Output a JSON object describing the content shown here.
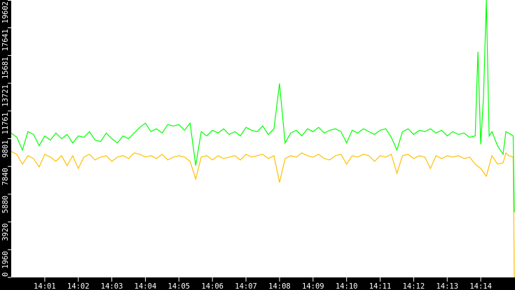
{
  "chart_data": {
    "type": "line",
    "title": "",
    "xlabel": "",
    "ylabel": "",
    "xlim": [
      "14:00:00",
      "14:15:00"
    ],
    "ylim": [
      0,
      19602
    ],
    "grid": false,
    "legend": "none",
    "background": "#000000",
    "plot_background": "#ffffff",
    "x_ticks": [
      "14:01",
      "14:02",
      "14:03",
      "14:04",
      "14:05",
      "14:06",
      "14:07",
      "14:08",
      "14:09",
      "14:10",
      "14:11",
      "14:12",
      "14:13",
      "14:14"
    ],
    "y_ticks": [
      "0",
      "1960",
      "3920",
      "5880",
      "7840",
      "9801",
      "11761",
      "13721",
      "15681",
      "17641",
      "19602"
    ],
    "series": [
      {
        "color": "#00ff00",
        "points": [
          [
            "14:00:00",
            10200
          ],
          [
            "14:00:10",
            9900
          ],
          [
            "14:00:20",
            9000
          ],
          [
            "14:00:30",
            10300
          ],
          [
            "14:00:40",
            10100
          ],
          [
            "14:00:50",
            9300
          ],
          [
            "14:01:00",
            10000
          ],
          [
            "14:01:10",
            9700
          ],
          [
            "14:01:20",
            10200
          ],
          [
            "14:01:30",
            9800
          ],
          [
            "14:01:40",
            10100
          ],
          [
            "14:01:50",
            9500
          ],
          [
            "14:02:00",
            10000
          ],
          [
            "14:02:10",
            9900
          ],
          [
            "14:02:20",
            10300
          ],
          [
            "14:02:30",
            9700
          ],
          [
            "14:02:40",
            9600
          ],
          [
            "14:02:50",
            10200
          ],
          [
            "14:03:00",
            9800
          ],
          [
            "14:03:10",
            9500
          ],
          [
            "14:03:20",
            10000
          ],
          [
            "14:03:30",
            9800
          ],
          [
            "14:03:40",
            10200
          ],
          [
            "14:03:50",
            10600
          ],
          [
            "14:04:00",
            10900
          ],
          [
            "14:04:10",
            10300
          ],
          [
            "14:04:20",
            10500
          ],
          [
            "14:04:30",
            10200
          ],
          [
            "14:04:40",
            10800
          ],
          [
            "14:04:50",
            10700
          ],
          [
            "14:05:00",
            10800
          ],
          [
            "14:05:10",
            10400
          ],
          [
            "14:05:20",
            10900
          ],
          [
            "14:05:30",
            7900
          ],
          [
            "14:05:40",
            10300
          ],
          [
            "14:05:50",
            10000
          ],
          [
            "14:06:00",
            10400
          ],
          [
            "14:06:10",
            10200
          ],
          [
            "14:06:20",
            10500
          ],
          [
            "14:06:30",
            10100
          ],
          [
            "14:06:40",
            10300
          ],
          [
            "14:06:50",
            10000
          ],
          [
            "14:07:00",
            10600
          ],
          [
            "14:07:10",
            10400
          ],
          [
            "14:07:20",
            10300
          ],
          [
            "14:07:30",
            10700
          ],
          [
            "14:07:40",
            10100
          ],
          [
            "14:07:50",
            10500
          ],
          [
            "14:08:00",
            13700
          ],
          [
            "14:08:10",
            9500
          ],
          [
            "14:08:20",
            10200
          ],
          [
            "14:08:30",
            10400
          ],
          [
            "14:08:40",
            10000
          ],
          [
            "14:08:50",
            10500
          ],
          [
            "14:09:00",
            10300
          ],
          [
            "14:09:10",
            10600
          ],
          [
            "14:09:20",
            10200
          ],
          [
            "14:09:30",
            10400
          ],
          [
            "14:09:40",
            10500
          ],
          [
            "14:09:50",
            10300
          ],
          [
            "14:10:00",
            9500
          ],
          [
            "14:10:10",
            10400
          ],
          [
            "14:10:20",
            10200
          ],
          [
            "14:10:30",
            10500
          ],
          [
            "14:10:40",
            10300
          ],
          [
            "14:10:50",
            10100
          ],
          [
            "14:11:00",
            10400
          ],
          [
            "14:11:10",
            10500
          ],
          [
            "14:11:20",
            9900
          ],
          [
            "14:11:30",
            9000
          ],
          [
            "14:11:40",
            10300
          ],
          [
            "14:11:50",
            10500
          ],
          [
            "14:12:00",
            10100
          ],
          [
            "14:12:10",
            10400
          ],
          [
            "14:12:20",
            10300
          ],
          [
            "14:12:30",
            10500
          ],
          [
            "14:12:40",
            10200
          ],
          [
            "14:12:50",
            10400
          ],
          [
            "14:13:00",
            10000
          ],
          [
            "14:13:10",
            10300
          ],
          [
            "14:13:20",
            10100
          ],
          [
            "14:13:30",
            10200
          ],
          [
            "14:13:40",
            9900
          ],
          [
            "14:13:50",
            10000
          ],
          [
            "14:13:55",
            15950
          ],
          [
            "14:14:00",
            9400
          ],
          [
            "14:14:05",
            12800
          ],
          [
            "14:14:10",
            19602
          ],
          [
            "14:14:15",
            10000
          ],
          [
            "14:14:20",
            10300
          ],
          [
            "14:14:30",
            9300
          ],
          [
            "14:14:40",
            8700
          ],
          [
            "14:14:45",
            10300
          ],
          [
            "14:14:50",
            10200
          ],
          [
            "14:14:58",
            10000
          ],
          [
            "14:15:00",
            4600
          ]
        ]
      },
      {
        "color": "#ffc000",
        "points": [
          [
            "14:00:00",
            8900
          ],
          [
            "14:00:10",
            8700
          ],
          [
            "14:00:20",
            8000
          ],
          [
            "14:00:30",
            8600
          ],
          [
            "14:00:40",
            8400
          ],
          [
            "14:00:50",
            7800
          ],
          [
            "14:01:00",
            8700
          ],
          [
            "14:01:10",
            8500
          ],
          [
            "14:01:20",
            8200
          ],
          [
            "14:01:30",
            8600
          ],
          [
            "14:01:40",
            7900
          ],
          [
            "14:01:50",
            8600
          ],
          [
            "14:02:00",
            7700
          ],
          [
            "14:02:10",
            8500
          ],
          [
            "14:02:20",
            8700
          ],
          [
            "14:02:30",
            8300
          ],
          [
            "14:02:40",
            8500
          ],
          [
            "14:02:50",
            8600
          ],
          [
            "14:03:00",
            8200
          ],
          [
            "14:03:10",
            8500
          ],
          [
            "14:03:20",
            8600
          ],
          [
            "14:03:30",
            8400
          ],
          [
            "14:03:40",
            8800
          ],
          [
            "14:03:50",
            8700
          ],
          [
            "14:04:00",
            8500
          ],
          [
            "14:04:10",
            8600
          ],
          [
            "14:04:20",
            8400
          ],
          [
            "14:04:30",
            8700
          ],
          [
            "14:04:40",
            8300
          ],
          [
            "14:04:50",
            8500
          ],
          [
            "14:05:00",
            8600
          ],
          [
            "14:05:10",
            8500
          ],
          [
            "14:05:20",
            8200
          ],
          [
            "14:05:30",
            6950
          ],
          [
            "14:05:40",
            8500
          ],
          [
            "14:05:50",
            8600
          ],
          [
            "14:06:00",
            8300
          ],
          [
            "14:06:10",
            8600
          ],
          [
            "14:06:20",
            8400
          ],
          [
            "14:06:30",
            8500
          ],
          [
            "14:06:40",
            8600
          ],
          [
            "14:06:50",
            8300
          ],
          [
            "14:07:00",
            8700
          ],
          [
            "14:07:10",
            8500
          ],
          [
            "14:07:20",
            8600
          ],
          [
            "14:07:30",
            8700
          ],
          [
            "14:07:40",
            8400
          ],
          [
            "14:07:50",
            8600
          ],
          [
            "14:08:00",
            6700
          ],
          [
            "14:08:10",
            8400
          ],
          [
            "14:08:20",
            8600
          ],
          [
            "14:08:30",
            8500
          ],
          [
            "14:08:40",
            8800
          ],
          [
            "14:08:50",
            8600
          ],
          [
            "14:09:00",
            8500
          ],
          [
            "14:09:10",
            8700
          ],
          [
            "14:09:20",
            8400
          ],
          [
            "14:09:30",
            8300
          ],
          [
            "14:09:40",
            8600
          ],
          [
            "14:09:50",
            8700
          ],
          [
            "14:10:00",
            8000
          ],
          [
            "14:10:10",
            8600
          ],
          [
            "14:10:20",
            8500
          ],
          [
            "14:10:30",
            8700
          ],
          [
            "14:10:40",
            8600
          ],
          [
            "14:10:50",
            8200
          ],
          [
            "14:11:00",
            8600
          ],
          [
            "14:11:10",
            8500
          ],
          [
            "14:11:20",
            8700
          ],
          [
            "14:11:30",
            7350
          ],
          [
            "14:11:40",
            8600
          ],
          [
            "14:11:50",
            8700
          ],
          [
            "14:12:00",
            8400
          ],
          [
            "14:12:10",
            8600
          ],
          [
            "14:12:20",
            8500
          ],
          [
            "14:12:30",
            7700
          ],
          [
            "14:12:40",
            8600
          ],
          [
            "14:12:50",
            8400
          ],
          [
            "14:13:00",
            8600
          ],
          [
            "14:13:10",
            8500
          ],
          [
            "14:13:20",
            8600
          ],
          [
            "14:13:30",
            8400
          ],
          [
            "14:13:40",
            8500
          ],
          [
            "14:13:50",
            8000
          ],
          [
            "14:14:00",
            7700
          ],
          [
            "14:14:10",
            7150
          ],
          [
            "14:14:20",
            8600
          ],
          [
            "14:14:30",
            8000
          ],
          [
            "14:14:40",
            8100
          ],
          [
            "14:14:45",
            8800
          ],
          [
            "14:14:50",
            8600
          ],
          [
            "14:14:58",
            8500
          ],
          [
            "14:15:00",
            0
          ]
        ]
      }
    ]
  }
}
